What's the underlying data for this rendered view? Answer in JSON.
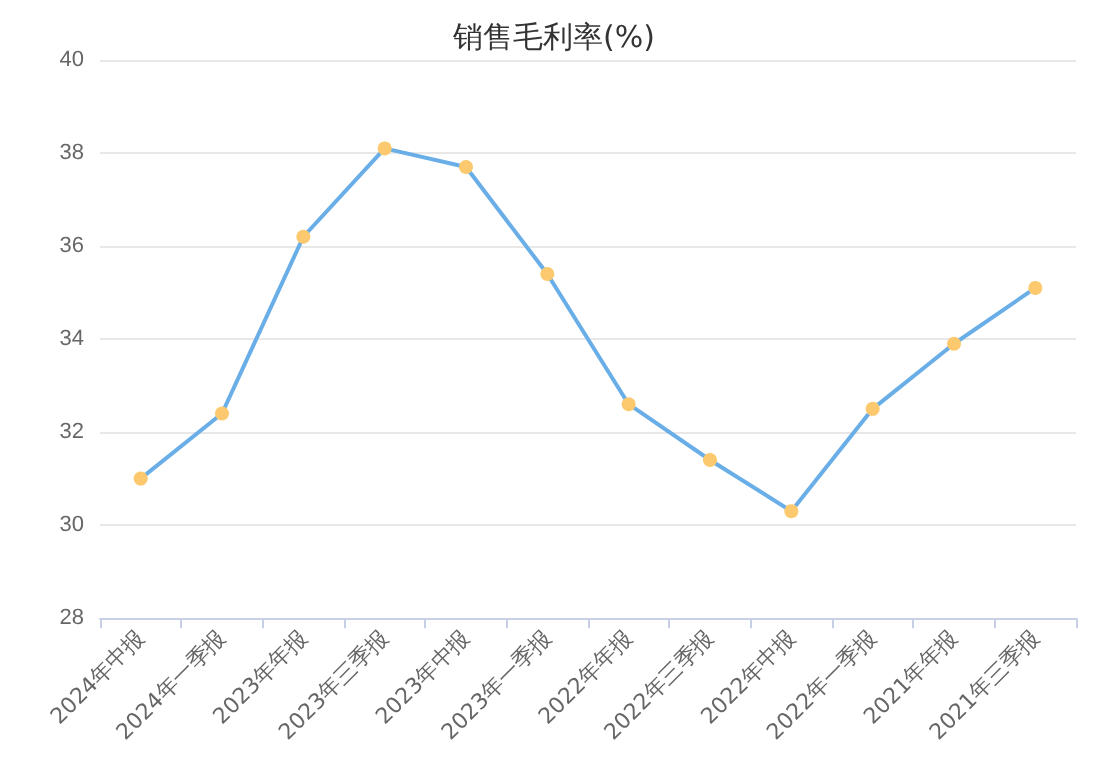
{
  "chart_data": {
    "type": "line",
    "title": "销售毛利率(%)",
    "categories": [
      "2024年中报",
      "2024年一季报",
      "2023年年报",
      "2023年三季报",
      "2023年中报",
      "2023年一季报",
      "2022年年报",
      "2022年三季报",
      "2022年中报",
      "2022年一季报",
      "2021年年报",
      "2021年三季报"
    ],
    "values": [
      31.0,
      32.4,
      36.2,
      38.1,
      37.7,
      35.4,
      32.6,
      31.4,
      30.3,
      32.5,
      33.9,
      35.1
    ],
    "color": "#6aaee8",
    "colors": [
      "#fcc96e",
      "#fcc96e",
      "#fcc96e",
      "#fcc96e",
      "#fcc96e",
      "#fcc96e",
      "#fcc96e",
      "#fcc96e",
      "#fcc96e",
      "#fcc96e",
      "#fcc96e",
      "#fcc96e"
    ],
    "ylim": [
      28,
      40
    ],
    "yticks": [
      28,
      30,
      32,
      34,
      36,
      38,
      40
    ],
    "grid": "y",
    "marker": "circle",
    "line_style": "solid"
  }
}
